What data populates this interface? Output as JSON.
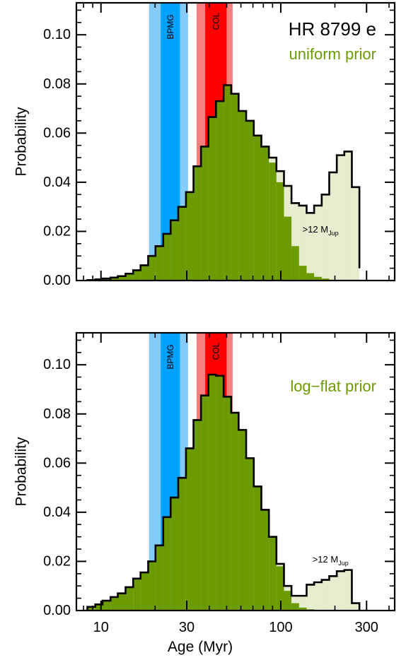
{
  "figure": {
    "xlabel": "Age (Myr)",
    "x_ticks": [
      "10",
      "30",
      "100",
      "300"
    ],
    "x_tick_values": [
      10,
      30,
      100,
      300
    ],
    "colors": {
      "cyan_light": "#84cbfa",
      "cyan": "#00a2ff",
      "red_light": "#f5807f",
      "red": "#ff0000",
      "green": "#6b9b00",
      "green_light": "#e6edcf",
      "line": "#000000"
    }
  },
  "chart_data": [
    {
      "type": "bar",
      "title": "HR 8799 e",
      "subtitle": "uniform prior",
      "ylabel": "Probability",
      "xlabel": "",
      "xscale": "log",
      "xlim": [
        7.3,
        430
      ],
      "ylim": [
        0,
        0.113
      ],
      "y_ticks": [
        "0.00",
        "0.02",
        "0.04",
        "0.06",
        "0.08",
        "0.10"
      ],
      "y_tick_values": [
        0,
        0.02,
        0.04,
        0.06,
        0.08,
        0.1
      ],
      "bands": [
        {
          "label": "BPMG",
          "x_range": [
            18.5,
            30.5
          ],
          "inner_range": [
            21.5,
            27.5
          ],
          "color": "cyan"
        },
        {
          "label": "COL",
          "x_range": [
            34,
            54
          ],
          "inner_range": [
            38,
            50
          ],
          "color": "red"
        }
      ],
      "bin_edges": [
        8.4,
        9.3,
        10.2,
        11.3,
        12.4,
        13.7,
        15.1,
        16.6,
        18.3,
        20.1,
        22.2,
        24.4,
        26.9,
        29.7,
        32.7,
        36.0,
        39.6,
        43.6,
        48.1,
        53.0,
        58.3,
        64.2,
        70.8,
        78.0,
        85.9,
        94.6,
        104.2,
        114.7,
        126.4,
        139.2,
        153.3,
        168.9,
        186.0,
        204.9,
        225.6,
        248.5,
        273.7
      ],
      "series": [
        {
          "name": ">12 MJup",
          "values": [
            0.0002,
            0.0005,
            0.0008,
            0.0012,
            0.0018,
            0.0028,
            0.0042,
            0.0062,
            0.01,
            0.014,
            0.019,
            0.0245,
            0.03,
            0.036,
            0.0465,
            0.0545,
            0.0665,
            0.073,
            0.0795,
            0.076,
            0.069,
            0.065,
            0.059,
            0.0545,
            0.05,
            0.0445,
            0.0385,
            0.0315,
            0.0305,
            0.0275,
            0.0305,
            0.035,
            0.044,
            0.051,
            0.0525,
            0.038,
            0.005
          ]
        },
        {
          "name": "",
          "values": [
            0.0002,
            0.0005,
            0.0008,
            0.0012,
            0.0018,
            0.0028,
            0.0042,
            0.0062,
            0.01,
            0.014,
            0.019,
            0.0245,
            0.03,
            0.036,
            0.0465,
            0.0545,
            0.0665,
            0.073,
            0.0795,
            0.076,
            0.069,
            0.065,
            0.059,
            0.0545,
            0.048,
            0.04,
            0.026,
            0.014,
            0.006,
            0.003,
            0.0015,
            0.0008,
            0.0003,
            0.0001,
            0.0,
            0.0,
            0.0
          ]
        }
      ],
      "annotation": ">12 M",
      "annotation_sub": "Jup",
      "annotation_x": 132,
      "annotation_y": 0.0195
    },
    {
      "type": "bar",
      "subtitle": "log−flat prior",
      "ylabel": "Probability",
      "xlabel": "Age (Myr)",
      "xscale": "log",
      "xlim": [
        7.3,
        430
      ],
      "ylim": [
        0,
        0.113
      ],
      "y_ticks": [
        "0.00",
        "0.02",
        "0.04",
        "0.06",
        "0.08",
        "0.10"
      ],
      "y_tick_values": [
        0,
        0.02,
        0.04,
        0.06,
        0.08,
        0.1
      ],
      "bands": [
        {
          "label": "BPMG",
          "x_range": [
            18.5,
            30.5
          ],
          "inner_range": [
            21.5,
            27.5
          ],
          "color": "cyan"
        },
        {
          "label": "COL",
          "x_range": [
            34,
            54
          ],
          "inner_range": [
            38,
            50
          ],
          "color": "red"
        }
      ],
      "bin_edges": [
        8.4,
        9.3,
        10.2,
        11.3,
        12.4,
        13.7,
        15.1,
        16.6,
        18.3,
        20.1,
        22.2,
        24.4,
        26.9,
        29.7,
        32.7,
        36.0,
        39.6,
        43.6,
        48.1,
        53.0,
        58.3,
        64.2,
        70.8,
        78.0,
        85.9,
        94.6,
        104.2,
        114.7,
        126.4,
        139.2,
        153.3,
        168.9,
        186.0,
        204.9,
        225.6,
        248.5,
        273.7
      ],
      "series": [
        {
          "name": ">12 MJup",
          "values": [
            0.0015,
            0.0025,
            0.004,
            0.0055,
            0.007,
            0.0095,
            0.013,
            0.0155,
            0.02,
            0.0265,
            0.038,
            0.046,
            0.054,
            0.066,
            0.0775,
            0.0875,
            0.096,
            0.0955,
            0.087,
            0.0805,
            0.0735,
            0.062,
            0.0505,
            0.041,
            0.03,
            0.019,
            0.01,
            0.006,
            0.006,
            0.0105,
            0.0115,
            0.0125,
            0.014,
            0.016,
            0.0165,
            0.003,
            0.0
          ]
        },
        {
          "name": "",
          "values": [
            0.0015,
            0.0025,
            0.004,
            0.0055,
            0.007,
            0.0095,
            0.013,
            0.0155,
            0.02,
            0.0265,
            0.038,
            0.046,
            0.054,
            0.066,
            0.0775,
            0.0875,
            0.096,
            0.0955,
            0.087,
            0.0805,
            0.0735,
            0.062,
            0.0505,
            0.041,
            0.03,
            0.018,
            0.008,
            0.003,
            0.0012,
            0.0005,
            0.0002,
            0.0001,
            0.0,
            0.0,
            0.0,
            0.0,
            0.0
          ]
        }
      ],
      "annotation": ">12 M",
      "annotation_sub": "Jup",
      "annotation_x": 150,
      "annotation_y": 0.0195
    }
  ]
}
